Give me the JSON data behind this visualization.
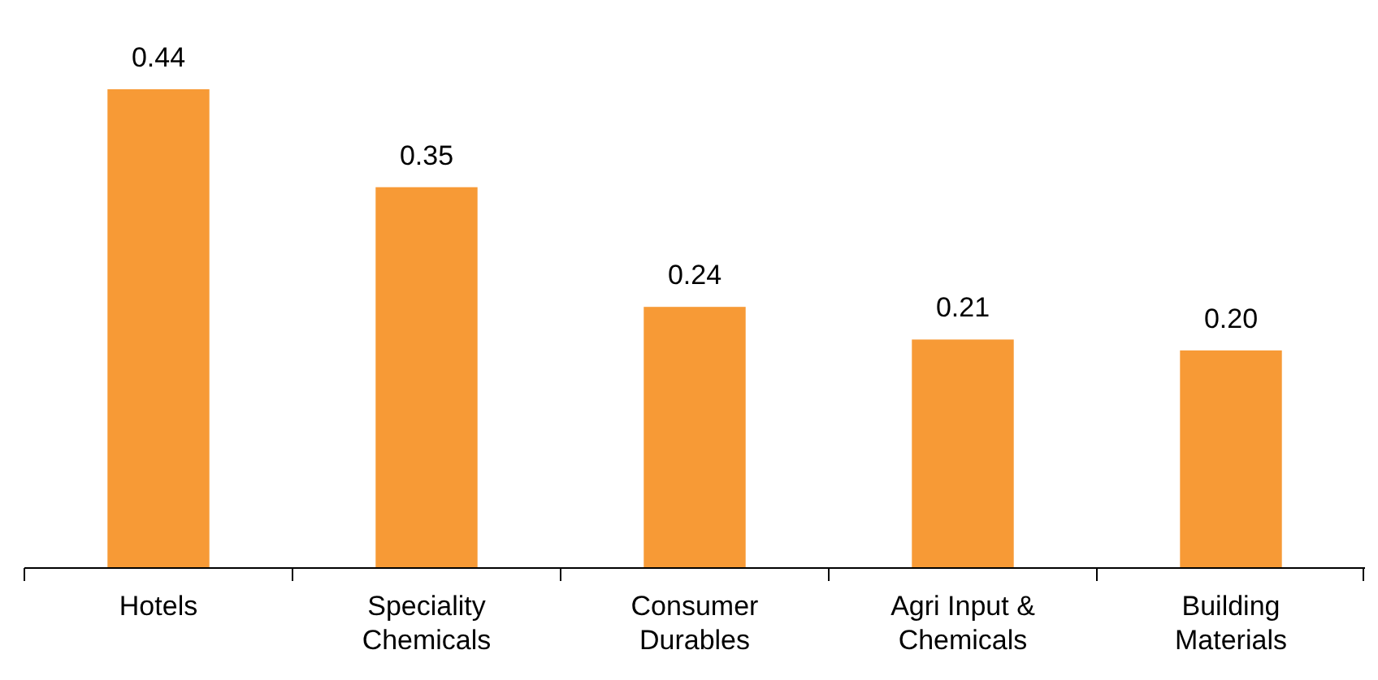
{
  "chart_data": {
    "type": "bar",
    "categories": [
      "Hotels",
      "Speciality Chemicals",
      "Consumer Durables",
      "Agri Input & Chemicals",
      "Building Materials"
    ],
    "values": [
      0.44,
      0.35,
      0.24,
      0.21,
      0.2
    ],
    "color": "#f79a36",
    "value_labels": [
      "0.44",
      "0.35",
      "0.24",
      "0.21",
      "0.20"
    ]
  }
}
